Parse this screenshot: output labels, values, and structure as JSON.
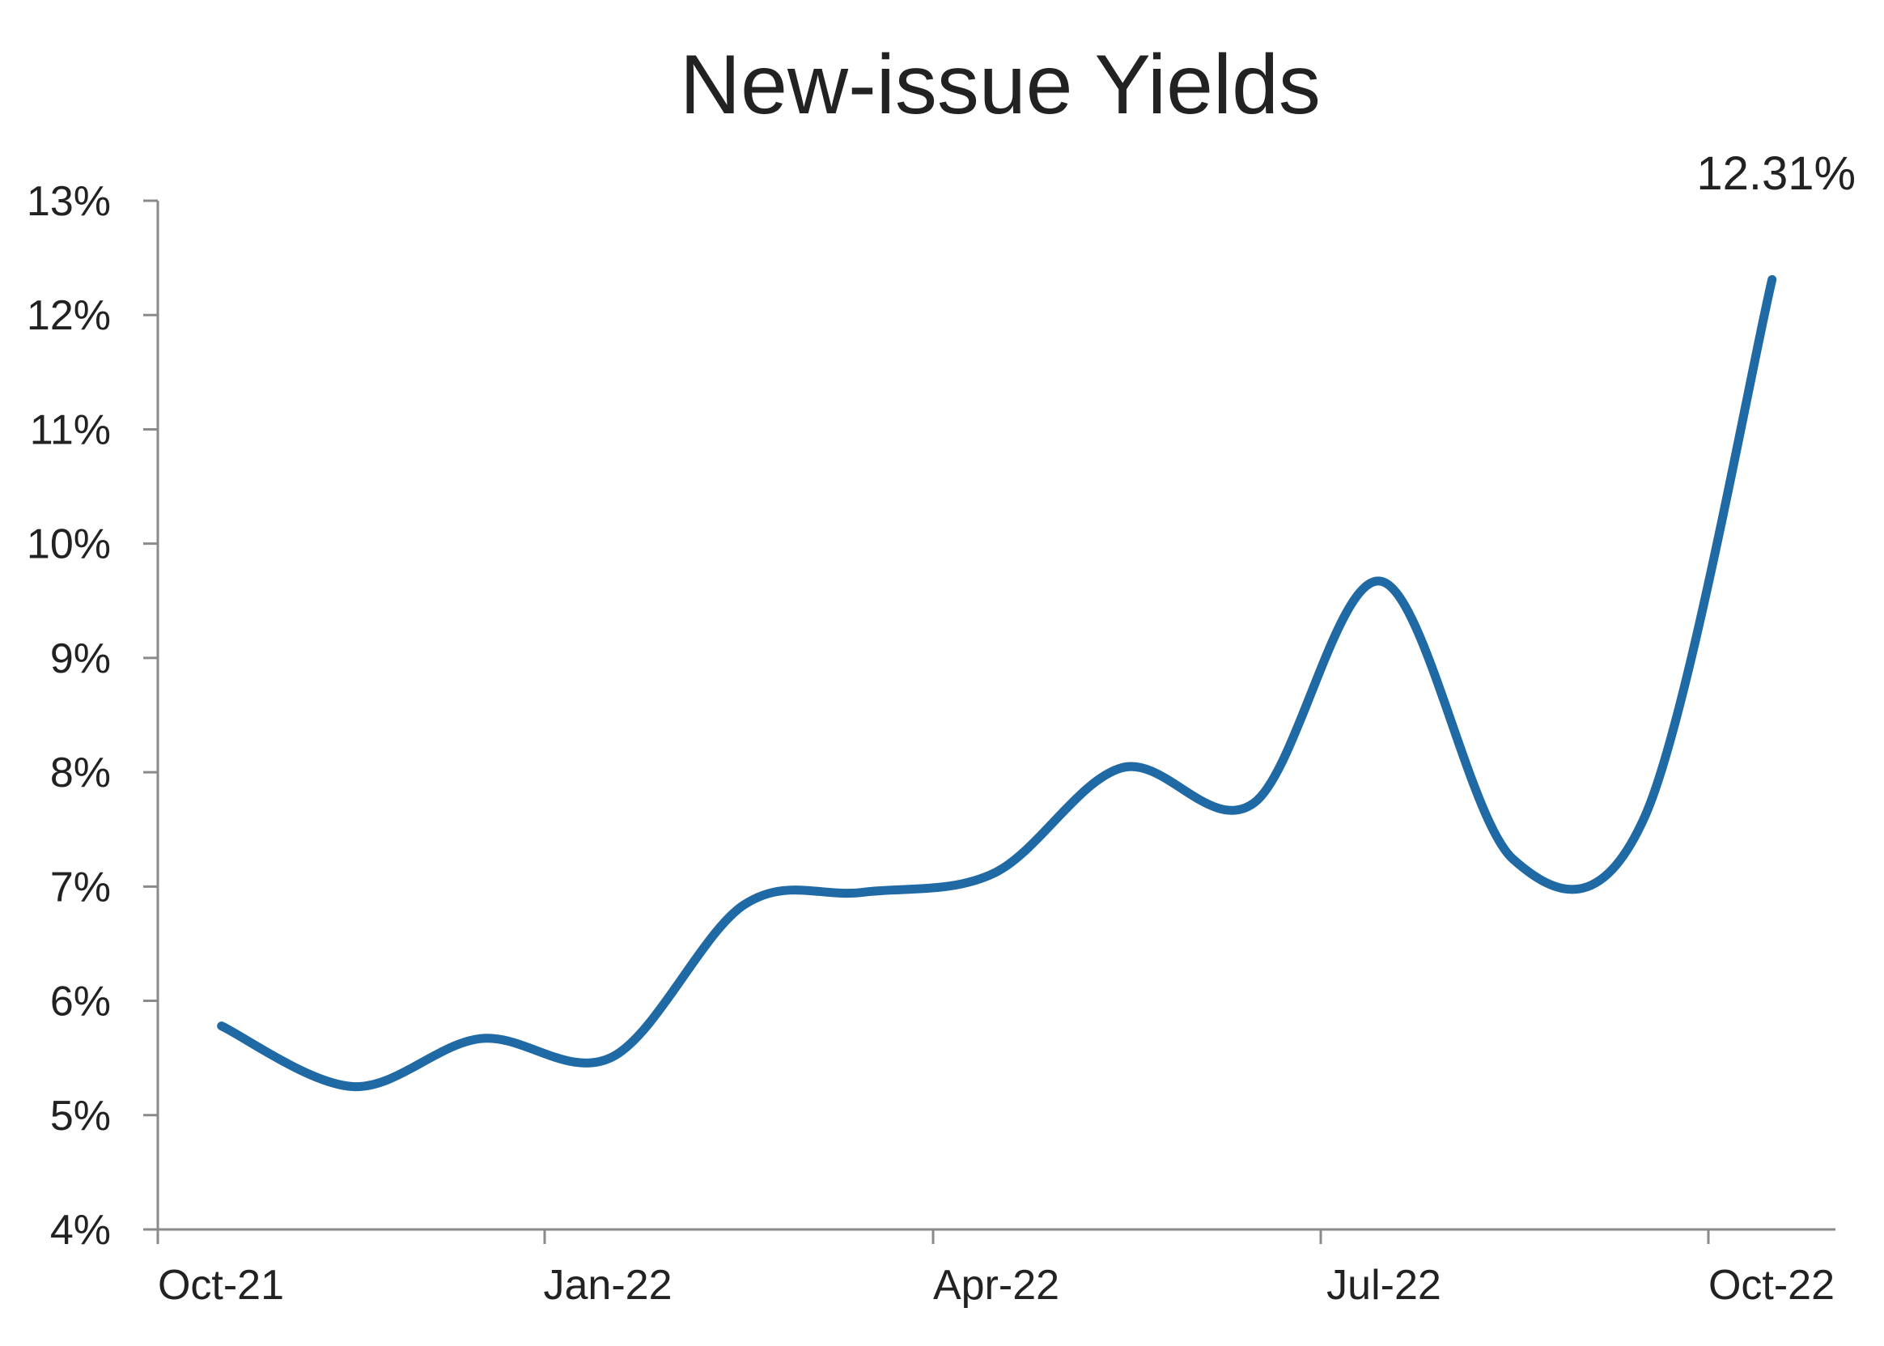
{
  "chart_data": {
    "type": "line",
    "title": "New-issue Yields",
    "xlabel": "",
    "ylabel": "",
    "x_tick_labels": [
      "Oct-21",
      "Jan-22",
      "Apr-22",
      "Jul-22",
      "Oct-22"
    ],
    "y_tick_labels": [
      "4%",
      "5%",
      "6%",
      "7%",
      "8%",
      "9%",
      "10%",
      "11%",
      "12%",
      "13%"
    ],
    "ylim": [
      4,
      13
    ],
    "grid": false,
    "legend": "none",
    "series": [
      {
        "color": "#1f6aa5",
        "x": [
          "2021-10-16",
          "2021-11-16",
          "2021-12-16",
          "2022-01-16",
          "2022-02-16",
          "2022-03-16",
          "2022-04-16",
          "2022-05-16",
          "2022-06-16",
          "2022-07-16",
          "2022-08-16",
          "2022-09-16",
          "2022-10-16"
        ],
        "values": [
          5.78,
          5.25,
          5.67,
          5.51,
          6.84,
          6.95,
          7.12,
          8.04,
          7.73,
          9.67,
          7.24,
          7.61,
          12.31
        ]
      }
    ],
    "annotations": [
      {
        "text": "12.31%",
        "x": "2022-10-16",
        "y": 12.31
      }
    ]
  }
}
